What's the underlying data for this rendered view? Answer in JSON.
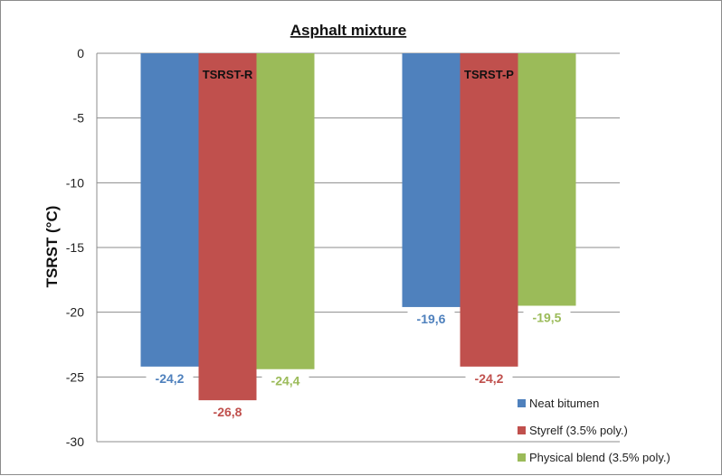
{
  "chart_data": {
    "type": "bar",
    "title": "Asphalt mixture",
    "xlabel": "",
    "ylabel": "TSRST (°C)",
    "ylim": [
      -30,
      0
    ],
    "yticks": [
      0,
      -5,
      -10,
      -15,
      -20,
      -25,
      -30
    ],
    "grid": true,
    "legend_position": "bottom-right",
    "categories": [
      "TSRST-R",
      "TSRST-P"
    ],
    "series": [
      {
        "name": "Neat bitumen",
        "values": [
          -24.2,
          -19.6
        ],
        "labels": [
          "-24,2",
          "-19,6"
        ],
        "color": "#4f81bd",
        "label_color": "#4f81bd"
      },
      {
        "name": "Styrelf (3.5% poly.)",
        "values": [
          -26.8,
          -24.2
        ],
        "labels": [
          "-26,8",
          "-24,2"
        ],
        "color": "#c0504d",
        "label_color": "#c0504d"
      },
      {
        "name": "Physical blend (3.5% poly.)",
        "values": [
          -24.4,
          -19.5
        ],
        "labels": [
          "-24,4",
          "-19,5"
        ],
        "color": "#9bbb59",
        "label_color": "#9bbb59"
      }
    ]
  }
}
